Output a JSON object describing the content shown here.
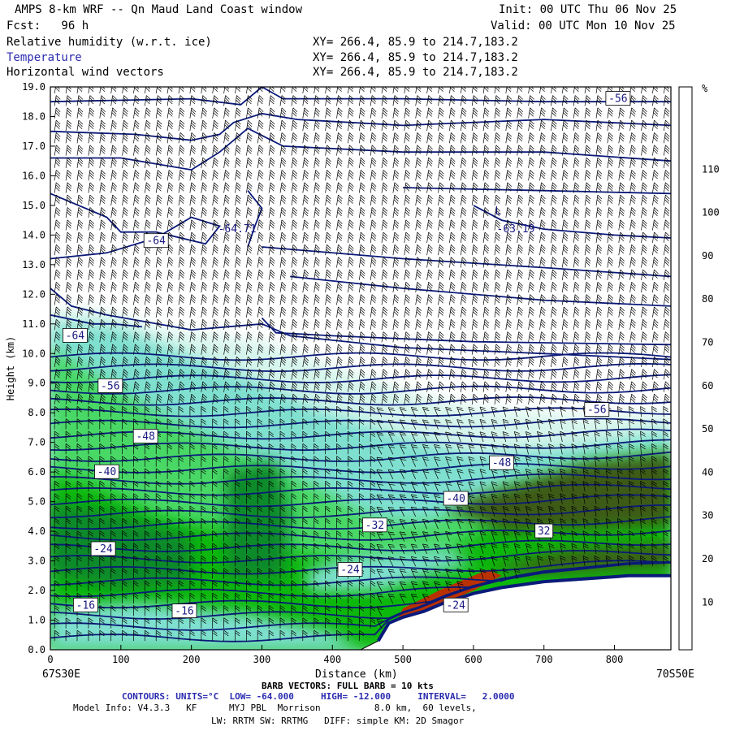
{
  "header": {
    "title": "AMPS 8-km WRF -- Qn Maud Land Coast window",
    "forecast": "Fcst:   96 h",
    "init": "Init: 00 UTC Thu 06 Nov 25",
    "valid": "Valid: 00 UTC Mon 10 Nov 25",
    "fields": [
      {
        "name": "Relative humidity (w.r.t. ice)",
        "xy": "XY= 266.4, 85.9 to 214.7,183.2"
      },
      {
        "name": "Temperature",
        "xy": "XY= 266.4, 85.9 to 214.7,183.2"
      },
      {
        "name": "Horizontal wind vectors",
        "xy": "XY= 266.4, 85.9 to 214.7,183.2"
      }
    ]
  },
  "footer": {
    "left_coord": "67S30E",
    "right_coord": "70S50E",
    "barb_line": "BARB VECTORS: FULL BARB = 10 kts",
    "contour_line": "CONTOURS: UNITS=°C  LOW= -64.000     HIGH= -12.000     INTERVAL=   2.0000",
    "model_line": "Model Info: V4.3.3   KF      MYJ PBL  Morrison          8.0 km,  60 levels,",
    "physics_line": "LW: RRTM SW: RRTMG   DIFF: simple KM: 2D Smagor"
  },
  "chart_data": {
    "type": "heatmap",
    "xlabel": "Distance (km)",
    "ylabel": "Height (km)",
    "xlim": [
      0,
      880
    ],
    "ylim": [
      0,
      19
    ],
    "xticks": [
      0,
      100,
      200,
      300,
      400,
      500,
      600,
      700,
      800
    ],
    "yticks": [
      "0.0",
      "1.0",
      "2.0",
      "3.0",
      "4.0",
      "5.0",
      "6.0",
      "7.0",
      "8.0",
      "9.0",
      "10.0",
      "11.0",
      "12.0",
      "13.0",
      "14.0",
      "15.0",
      "16.0",
      "17.0",
      "18.0",
      "19.0"
    ],
    "colorbar": {
      "unit": "%",
      "ticks": [
        10,
        20,
        30,
        40,
        50,
        60,
        70,
        80,
        90,
        100,
        110
      ],
      "colors": [
        "#ffffff",
        "#ffffff",
        "#ffffff",
        "#d6f5ec",
        "#7fe0d0",
        "#3ad2b8",
        "#48d866",
        "#2dd22d",
        "#10b810",
        "#0a8a2a",
        "#2a6e1a",
        "#3e5a12",
        "#cc2200"
      ]
    },
    "terrain": [
      [
        0,
        0
      ],
      [
        440,
        0
      ],
      [
        465,
        0.3
      ],
      [
        480,
        0.9
      ],
      [
        500,
        1.1
      ],
      [
        530,
        1.3
      ],
      [
        560,
        1.6
      ],
      [
        600,
        1.9
      ],
      [
        640,
        2.1
      ],
      [
        700,
        2.3
      ],
      [
        760,
        2.4
      ],
      [
        820,
        2.5
      ],
      [
        880,
        2.5
      ]
    ],
    "temperature_labels": [
      {
        "text": "-56",
        "x": 805,
        "y": 18.6
      },
      {
        "text": "-64.71",
        "x": 265,
        "y": 14.2
      },
      {
        "text": "L",
        "x": 635,
        "y": 14.8
      },
      {
        "text": "-63.19",
        "x": 660,
        "y": 14.2
      },
      {
        "text": "-64",
        "x": 150,
        "y": 13.8
      },
      {
        "text": "-64",
        "x": 35,
        "y": 10.6
      },
      {
        "text": "-56",
        "x": 85,
        "y": 8.9
      },
      {
        "text": "-56",
        "x": 775,
        "y": 8.1
      },
      {
        "text": "-48",
        "x": 135,
        "y": 7.2
      },
      {
        "text": "-48",
        "x": 640,
        "y": 6.3
      },
      {
        "text": "-40",
        "x": 80,
        "y": 6.0
      },
      {
        "text": "-40",
        "x": 575,
        "y": 5.1
      },
      {
        "text": "-32",
        "x": 460,
        "y": 4.2
      },
      {
        "text": "32",
        "x": 700,
        "y": 4.0
      },
      {
        "text": "-24",
        "x": 75,
        "y": 3.4
      },
      {
        "text": "-24",
        "x": 425,
        "y": 2.7
      },
      {
        "text": "-24",
        "x": 575,
        "y": 1.5
      },
      {
        "text": "-16",
        "x": 50,
        "y": 1.5
      },
      {
        "text": "-16",
        "x": 190,
        "y": 1.3
      }
    ]
  },
  "colors": {
    "contour": "#0b1a7a",
    "terrain": "#ffffff",
    "barb": "#000000"
  }
}
